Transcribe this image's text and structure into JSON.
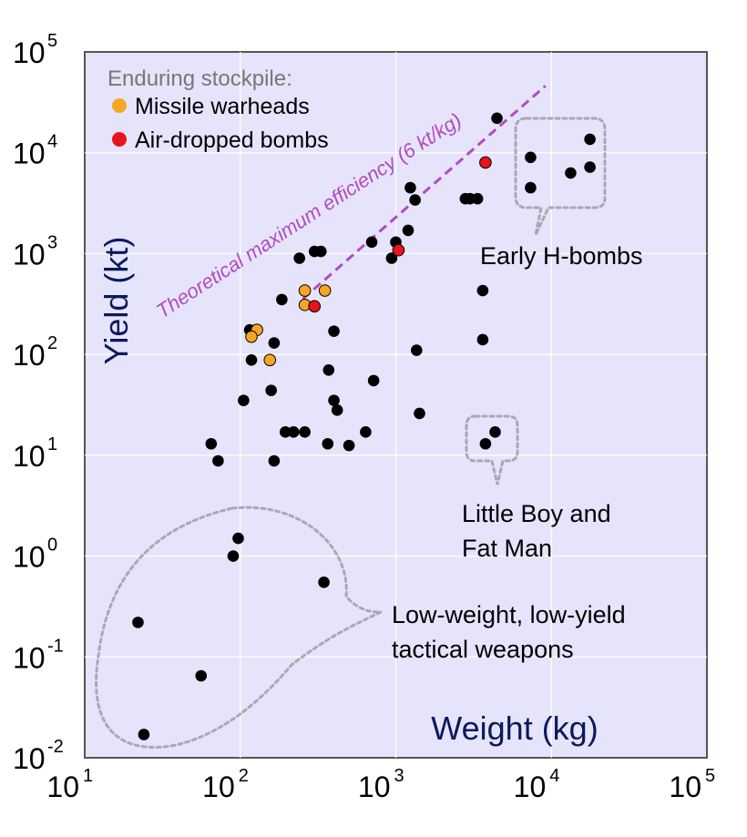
{
  "chart_data": {
    "type": "scatter",
    "title": "",
    "xlabel": "Weight (kg)",
    "ylabel": "Yield (kt)",
    "x_scale": "log",
    "y_scale": "log",
    "xlim": [
      10,
      100000
    ],
    "ylim": [
      0.01,
      100000
    ],
    "grid": true,
    "x_ticks": [
      {
        "base": "10",
        "exp": "1"
      },
      {
        "base": "10",
        "exp": "2"
      },
      {
        "base": "10",
        "exp": "3"
      },
      {
        "base": "10",
        "exp": "4"
      },
      {
        "base": "10",
        "exp": "5"
      }
    ],
    "y_ticks": [
      {
        "base": "10",
        "exp": "-2"
      },
      {
        "base": "10",
        "exp": "-1"
      },
      {
        "base": "10",
        "exp": "0"
      },
      {
        "base": "10",
        "exp": "1"
      },
      {
        "base": "10",
        "exp": "2"
      },
      {
        "base": "10",
        "exp": "3"
      },
      {
        "base": "10",
        "exp": "4"
      },
      {
        "base": "10",
        "exp": "5"
      }
    ],
    "legend": {
      "title": "Enduring stockpile:",
      "placement": "top-left",
      "entries": [
        {
          "label": "Missile warheads",
          "color": "#f5a623"
        },
        {
          "label": "Air-dropped bombs",
          "color": "#e8141b"
        }
      ]
    },
    "efficiency_line": {
      "label": "Theoretical maximum efficiency (6 kt/kg)",
      "kt_per_kg": 6,
      "x_range": [
        50,
        8000
      ],
      "color": "#b04cc0"
    },
    "annotations": [
      {
        "text": "Early H-bombs"
      },
      {
        "text": "Little Boy and"
      },
      {
        "text": "Fat Man"
      },
      {
        "text": "Low-weight, low-yield"
      },
      {
        "text": "tactical weapons"
      }
    ],
    "series": [
      {
        "category": "other",
        "color": "#000000",
        "points": [
          [
            4470,
            22000
          ],
          [
            17700,
            13600
          ],
          [
            7350,
            9000
          ],
          [
            17700,
            7200
          ],
          [
            13300,
            6300
          ],
          [
            7350,
            4500
          ],
          [
            1240,
            4500
          ],
          [
            1330,
            3400
          ],
          [
            2800,
            3500
          ],
          [
            3000,
            3500
          ],
          [
            3350,
            3500
          ],
          [
            1200,
            1700
          ],
          [
            700,
            1300
          ],
          [
            1000,
            1300
          ],
          [
            330,
            1050
          ],
          [
            300,
            1050
          ],
          [
            240,
            900
          ],
          [
            940,
            900
          ],
          [
            3620,
            430
          ],
          [
            185,
            350
          ],
          [
            115,
            175
          ],
          [
            400,
            170
          ],
          [
            165,
            130
          ],
          [
            3620,
            140
          ],
          [
            1360,
            110
          ],
          [
            118,
            88
          ],
          [
            370,
            70
          ],
          [
            720,
            55
          ],
          [
            158,
            44
          ],
          [
            105,
            35
          ],
          [
            400,
            35
          ],
          [
            420,
            28
          ],
          [
            1420,
            26
          ],
          [
            65,
            13
          ],
          [
            195,
            17
          ],
          [
            220,
            17
          ],
          [
            260,
            17
          ],
          [
            365,
            13
          ],
          [
            500,
            12.5
          ],
          [
            640,
            17
          ],
          [
            72,
            8.8
          ],
          [
            165,
            8.8
          ],
          [
            4350,
            17
          ],
          [
            3770,
            13
          ],
          [
            97,
            1.5
          ],
          [
            90,
            1.0
          ],
          [
            345,
            0.55
          ],
          [
            22,
            0.22
          ],
          [
            56,
            0.065
          ],
          [
            24,
            0.017
          ]
        ]
      },
      {
        "category": "missile",
        "color": "#f5a623",
        "points": [
          [
            260,
            430
          ],
          [
            350,
            430
          ],
          [
            260,
            310
          ],
          [
            128,
            175
          ],
          [
            118,
            150
          ],
          [
            155,
            88
          ]
        ]
      },
      {
        "category": "bomb",
        "color": "#e8141b",
        "points": [
          [
            3770,
            8000
          ],
          [
            1040,
            1080
          ],
          [
            300,
            300
          ]
        ]
      }
    ]
  }
}
